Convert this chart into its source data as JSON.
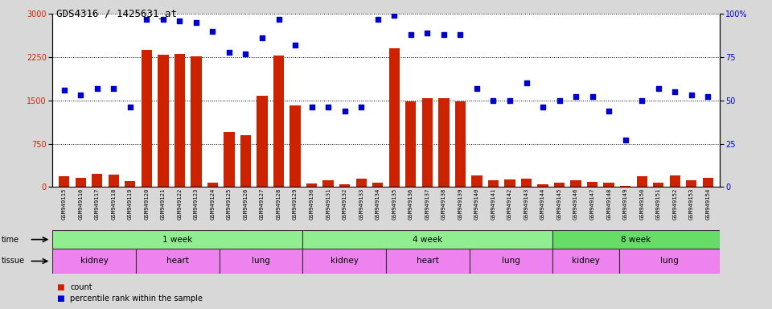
{
  "title": "GDS4316 / 1425631_at",
  "samples": [
    "GSM949115",
    "GSM949116",
    "GSM949117",
    "GSM949118",
    "GSM949119",
    "GSM949120",
    "GSM949121",
    "GSM949122",
    "GSM949123",
    "GSM949124",
    "GSM949125",
    "GSM949126",
    "GSM949127",
    "GSM949128",
    "GSM949129",
    "GSM949130",
    "GSM949131",
    "GSM949132",
    "GSM949133",
    "GSM949134",
    "GSM949135",
    "GSM949136",
    "GSM949137",
    "GSM949138",
    "GSM949139",
    "GSM949140",
    "GSM949141",
    "GSM949142",
    "GSM949143",
    "GSM949144",
    "GSM949145",
    "GSM949146",
    "GSM949147",
    "GSM949148",
    "GSM949149",
    "GSM949150",
    "GSM949151",
    "GSM949152",
    "GSM949153",
    "GSM949154"
  ],
  "counts": [
    180,
    160,
    230,
    220,
    100,
    2380,
    2290,
    2310,
    2270,
    70,
    950,
    900,
    1580,
    2280,
    1420,
    60,
    110,
    50,
    150,
    80,
    2400,
    1490,
    1540,
    1540,
    1480,
    200,
    110,
    130,
    150,
    50,
    70,
    120,
    90,
    70,
    15,
    190,
    80,
    200,
    120,
    160
  ],
  "percentiles": [
    56,
    53,
    57,
    57,
    46,
    97,
    97,
    96,
    95,
    90,
    78,
    77,
    86,
    97,
    82,
    46,
    46,
    44,
    46,
    97,
    99,
    88,
    89,
    88,
    88,
    57,
    50,
    50,
    60,
    46,
    50,
    52,
    52,
    44,
    27,
    50,
    57,
    55,
    53,
    52
  ],
  "bar_color": "#cc2200",
  "dot_color": "#0000cc",
  "yticks_left": [
    0,
    750,
    1500,
    2250,
    3000
  ],
  "yticks_right": [
    0,
    25,
    50,
    75,
    100
  ],
  "ylim_left": [
    0,
    3000
  ],
  "ylim_right": [
    0,
    100
  ],
  "time_groups": [
    {
      "label": "1 week",
      "start": 0,
      "end": 14,
      "color": "#90ee90"
    },
    {
      "label": "4 week",
      "start": 15,
      "end": 29,
      "color": "#90ee90"
    },
    {
      "label": "8 week",
      "start": 30,
      "end": 39,
      "color": "#66dd66"
    }
  ],
  "tissue_groups": [
    {
      "label": "kidney",
      "start": 0,
      "end": 4,
      "color": "#ee82ee"
    },
    {
      "label": "heart",
      "start": 5,
      "end": 9,
      "color": "#ee82ee"
    },
    {
      "label": "lung",
      "start": 10,
      "end": 14,
      "color": "#ee82ee"
    },
    {
      "label": "kidney",
      "start": 15,
      "end": 19,
      "color": "#ee82ee"
    },
    {
      "label": "heart",
      "start": 20,
      "end": 24,
      "color": "#ee82ee"
    },
    {
      "label": "lung",
      "start": 25,
      "end": 29,
      "color": "#ee82ee"
    },
    {
      "label": "kidney",
      "start": 30,
      "end": 33,
      "color": "#ee82ee"
    },
    {
      "label": "lung",
      "start": 34,
      "end": 39,
      "color": "#ee82ee"
    }
  ],
  "bg_color": "#d8d8d8",
  "plot_bg": "#ffffff",
  "legend_count_label": "count",
  "legend_pct_label": "percentile rank within the sample"
}
